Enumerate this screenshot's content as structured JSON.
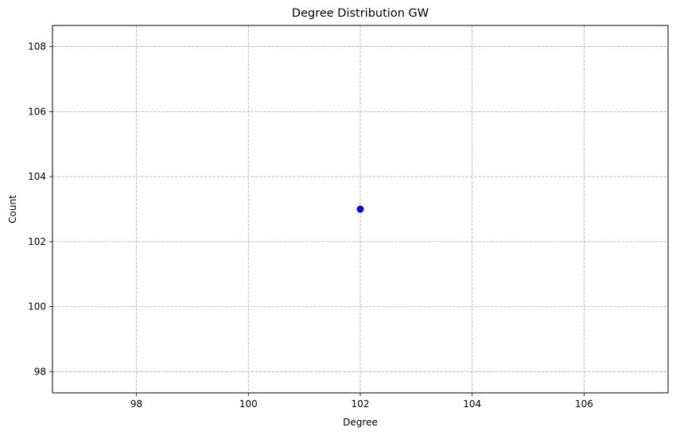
{
  "chart_data": {
    "type": "scatter",
    "title": "Degree Distribution GW",
    "xlabel": "Degree",
    "ylabel": "Count",
    "xlim": [
      96.5,
      107.5
    ],
    "ylim": [
      97.35,
      108.65
    ],
    "xticks": [
      98,
      100,
      102,
      104,
      106
    ],
    "yticks": [
      98,
      100,
      102,
      104,
      106,
      108
    ],
    "xtick_labels": [
      "98",
      "100",
      "102",
      "104",
      "106"
    ],
    "ytick_labels": [
      "98",
      "100",
      "102",
      "104",
      "106",
      "108"
    ],
    "grid": true,
    "grid_style": "dashed",
    "legend": "none",
    "series": [
      {
        "x": [
          102
        ],
        "y": [
          103
        ],
        "color": "#0000ff"
      }
    ],
    "colors": {
      "grid": "#b0b0b0",
      "axes": "#000000",
      "marker": "#0000ff"
    }
  }
}
